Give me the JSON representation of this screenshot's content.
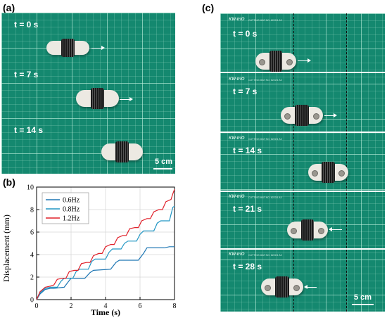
{
  "panels": {
    "a": {
      "label": "(a)",
      "frames": [
        {
          "time": "t = 0 s"
        },
        {
          "time": "t = 7 s"
        },
        {
          "time": "t = 14 s"
        }
      ],
      "scale_bar": "5 cm"
    },
    "b": {
      "label": "(b)"
    },
    "c": {
      "label": "(c)",
      "frames": [
        {
          "time": "t = 0 s",
          "brand": "KW-triO",
          "mat_text": "CUTTING MAT    NO. 6222/1   A3"
        },
        {
          "time": "t = 7 s",
          "brand": "KW-triO",
          "mat_text": "CUTTING MAT    NO. 6222/1   A3"
        },
        {
          "time": "t = 14 s",
          "brand": "KW-triO",
          "mat_text": "CUTTING MAT    NO. 6222/1   A3"
        },
        {
          "time": "t = 21 s",
          "brand": "KW-triO",
          "mat_text": "CUTTING MAT    NO. 6222/1   A3"
        },
        {
          "time": "t = 28 s",
          "brand": "KW-triO",
          "mat_text": "CUTTING MAT    NO. 6222/1   A3"
        }
      ],
      "scale_bar": "5 cm"
    }
  },
  "chart_data": {
    "type": "line",
    "xlabel": "Time (s)",
    "ylabel": "Displacement (mm)",
    "xlim": [
      0,
      8
    ],
    "ylim": [
      0,
      10
    ],
    "xticks": [
      "0",
      "2",
      "4",
      "6",
      "8"
    ],
    "yticks": [
      "0",
      "2",
      "4",
      "6",
      "8",
      "10"
    ],
    "grid": true,
    "legend_position": "top-left",
    "series": [
      {
        "name": "0.6Hz",
        "color": "#1f77b4",
        "x": [
          0,
          0.2,
          0.5,
          0.8,
          1.0,
          1.6,
          1.9,
          2.0,
          2.8,
          3.1,
          3.3,
          4.3,
          4.6,
          4.8,
          5.9,
          6.2,
          6.4,
          7.4,
          7.7,
          8.0
        ],
        "y": [
          0,
          0.5,
          0.9,
          1.0,
          1.0,
          1.1,
          1.7,
          1.9,
          1.9,
          2.4,
          2.6,
          2.7,
          3.3,
          3.5,
          3.5,
          4.1,
          4.6,
          4.6,
          4.7,
          4.7
        ]
      },
      {
        "name": "0.8Hz",
        "color": "#2196c4",
        "x": [
          0,
          0.2,
          0.5,
          0.8,
          1.2,
          1.4,
          1.6,
          2.1,
          2.3,
          2.5,
          3.0,
          3.2,
          3.4,
          4.0,
          4.2,
          4.4,
          4.9,
          5.1,
          5.3,
          5.8,
          6.0,
          6.2,
          6.8,
          7.0,
          7.2,
          7.7,
          7.9,
          8.0
        ],
        "y": [
          0,
          0.6,
          1.0,
          1.1,
          1.1,
          1.6,
          1.9,
          1.9,
          2.5,
          2.7,
          2.7,
          3.4,
          3.6,
          3.6,
          4.2,
          4.5,
          4.5,
          5.0,
          5.2,
          5.2,
          5.8,
          6.1,
          6.1,
          6.8,
          7.0,
          7.0,
          8.2,
          8.3
        ]
      },
      {
        "name": "1.2Hz",
        "color": "#e0202a",
        "x": [
          0,
          0.2,
          0.5,
          0.8,
          1.0,
          1.2,
          1.5,
          1.7,
          1.9,
          2.2,
          2.4,
          2.6,
          2.9,
          3.1,
          3.3,
          3.6,
          3.8,
          4.0,
          4.3,
          4.5,
          4.7,
          5.0,
          5.2,
          5.4,
          5.7,
          5.9,
          6.1,
          6.4,
          6.6,
          6.8,
          7.1,
          7.3,
          7.5,
          7.8,
          7.9,
          8.0
        ],
        "y": [
          0,
          0.7,
          1.1,
          1.2,
          1.3,
          1.8,
          1.9,
          1.9,
          2.5,
          2.6,
          2.6,
          3.2,
          3.3,
          3.3,
          3.9,
          4.1,
          4.1,
          4.7,
          4.9,
          4.9,
          5.5,
          5.7,
          5.7,
          6.3,
          6.4,
          6.4,
          7.0,
          7.2,
          7.2,
          7.8,
          8.0,
          8.0,
          8.7,
          8.9,
          9.4,
          9.8
        ]
      }
    ]
  }
}
